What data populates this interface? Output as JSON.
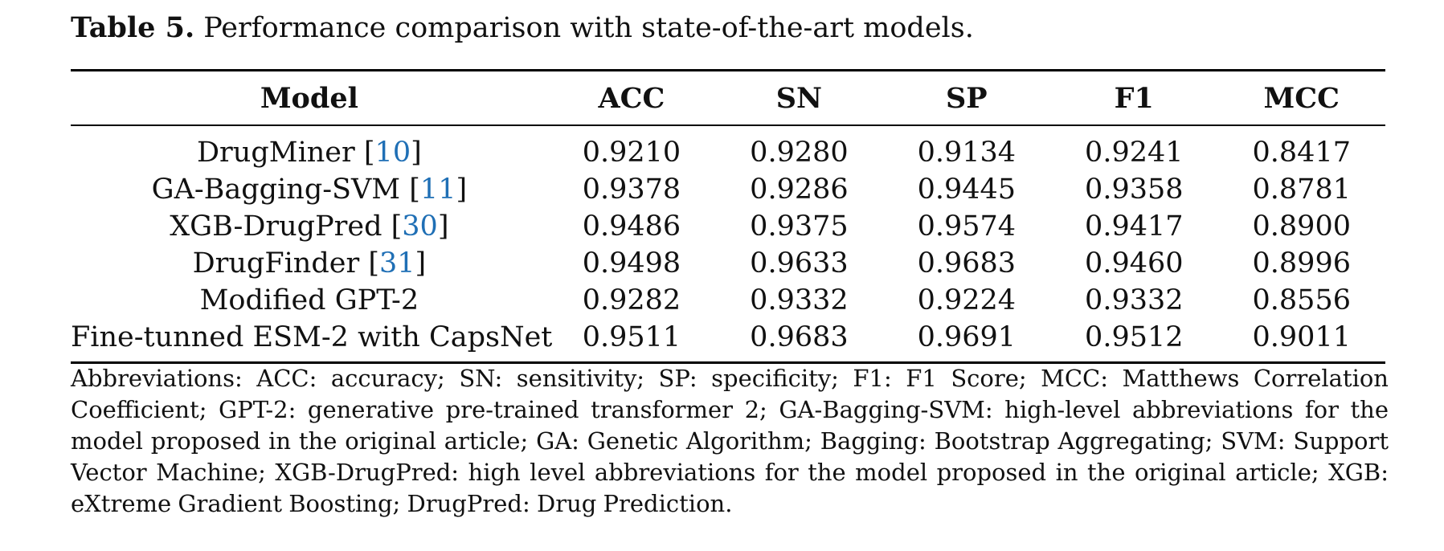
{
  "caption": {
    "label": "Table 5.",
    "text": "Performance comparison with state-of-the-art models."
  },
  "table": {
    "headers": [
      "Model",
      "ACC",
      "SN",
      "SP",
      "F1",
      "MCC"
    ],
    "rows": [
      {
        "model": "DrugMiner",
        "ref": "10",
        "values": [
          "0.9210",
          "0.9280",
          "0.9134",
          "0.9241",
          "0.8417"
        ]
      },
      {
        "model": "GA-Bagging-SVM",
        "ref": "11",
        "values": [
          "0.9378",
          "0.9286",
          "0.9445",
          "0.9358",
          "0.8781"
        ]
      },
      {
        "model": "XGB-DrugPred",
        "ref": "30",
        "values": [
          "0.9486",
          "0.9375",
          "0.9574",
          "0.9417",
          "0.8900"
        ]
      },
      {
        "model": "DrugFinder",
        "ref": "31",
        "values": [
          "0.9498",
          "0.9633",
          "0.9683",
          "0.9460",
          "0.8996"
        ]
      },
      {
        "model": "Modified GPT-2",
        "ref": "",
        "values": [
          "0.9282",
          "0.9332",
          "0.9224",
          "0.9332",
          "0.8556"
        ]
      },
      {
        "model": "Fine-tunned ESM-2 with CapsNet",
        "ref": "",
        "values": [
          "0.9511",
          "0.9683",
          "0.9691",
          "0.9512",
          "0.9011"
        ]
      }
    ]
  },
  "notes": "Abbreviations: ACC: accuracy; SN: sensitivity; SP: specificity; F1: F1 Score; MCC: Matthews Correlation Coefficient; GPT-2: generative pre-trained transformer 2; GA-Bagging-SVM: high-level abbreviations for the model proposed in the original article; GA: Genetic Algorithm; Bagging: Bootstrap Aggregating; SVM: Support Vector Machine; XGB-DrugPred: high level abbreviations for the model proposed in the original article; XGB: eXtreme Gradient Boosting; DrugPred: Drug Prediction.",
  "colors": {
    "reference_link": "#1f6fb5",
    "text": "#111111"
  }
}
